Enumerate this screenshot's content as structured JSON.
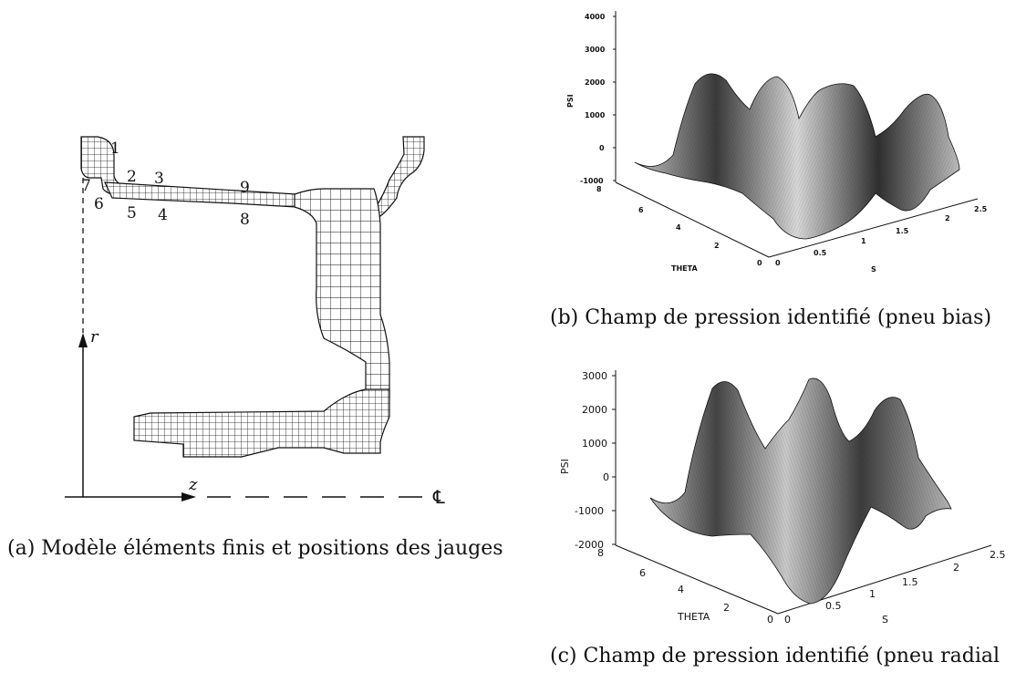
{
  "figure_a": {
    "caption": "(a) Modèle éléments finis et positions des jauges",
    "axis_r": "r",
    "axis_z": "z",
    "centerline": "℄",
    "gauges": [
      "1",
      "2",
      "3",
      "4",
      "5",
      "6",
      "7",
      "8",
      "9"
    ]
  },
  "figure_b": {
    "caption": "(b) Champ de pression identifié (pneu bias)",
    "zlabel": "PSI",
    "xlabel": "THETA",
    "ylabel": "S",
    "z_ticks": [
      "4000",
      "3000",
      "2000",
      "1000",
      "0",
      "-1000"
    ],
    "theta_ticks": [
      "8",
      "6",
      "4",
      "2",
      "0"
    ],
    "s_ticks": [
      "0",
      "0.5",
      "1",
      "1.5",
      "2",
      "2.5"
    ]
  },
  "figure_c": {
    "caption": "(c) Champ de pression identifié (pneu radial",
    "zlabel": "PSI",
    "xlabel": "THETA",
    "ylabel": "S",
    "z_ticks": [
      "3000",
      "2000",
      "1000",
      "0",
      "-1000",
      "-2000"
    ],
    "theta_ticks": [
      "8",
      "6",
      "4",
      "2",
      "0"
    ],
    "s_ticks": [
      "0",
      "0.5",
      "1",
      "1.5",
      "2",
      "2.5"
    ]
  },
  "colors": {
    "ink": "#111111",
    "surface_light": "#d4d4d4",
    "surface_dark": "#2a2a2a"
  }
}
